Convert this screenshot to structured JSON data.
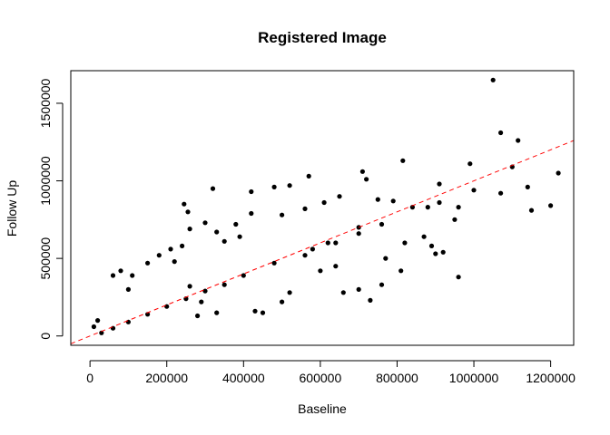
{
  "chart_data": {
    "type": "scatter",
    "title": "Registered Image",
    "xlabel": "Baseline",
    "ylabel": "Follow Up",
    "xlim": [
      -50000,
      1260000
    ],
    "ylim": [
      -60000,
      1710000
    ],
    "x_ticks": [
      0,
      200000,
      400000,
      600000,
      800000,
      1000000,
      1200000
    ],
    "x_tick_labels": [
      "0",
      "200000",
      "400000",
      "600000",
      "800000",
      "1000000",
      "1200000"
    ],
    "y_ticks": [
      0,
      500000,
      1000000,
      1500000
    ],
    "y_tick_labels": [
      "0",
      "500000",
      "1000000",
      "1500000"
    ],
    "grid": false,
    "reference_line": {
      "intercept": 0,
      "slope": 1.0,
      "color": "#ff0000",
      "style": "dashed"
    },
    "point_color": "#000000",
    "points": [
      [
        1050000,
        1650000
      ],
      [
        1070000,
        1310000
      ],
      [
        1115000,
        1260000
      ],
      [
        1100000,
        1090000
      ],
      [
        1220000,
        1050000
      ],
      [
        1070000,
        920000
      ],
      [
        1140000,
        960000
      ],
      [
        1150000,
        810000
      ],
      [
        1200000,
        840000
      ],
      [
        990000,
        1110000
      ],
      [
        1000000,
        940000
      ],
      [
        910000,
        980000
      ],
      [
        960000,
        830000
      ],
      [
        910000,
        860000
      ],
      [
        880000,
        830000
      ],
      [
        950000,
        750000
      ],
      [
        815000,
        1130000
      ],
      [
        710000,
        1060000
      ],
      [
        720000,
        1010000
      ],
      [
        570000,
        1030000
      ],
      [
        480000,
        960000
      ],
      [
        320000,
        950000
      ],
      [
        245000,
        850000
      ],
      [
        255000,
        800000
      ],
      [
        420000,
        930000
      ],
      [
        520000,
        970000
      ],
      [
        960000,
        380000
      ],
      [
        900000,
        530000
      ],
      [
        890000,
        580000
      ],
      [
        920000,
        540000
      ],
      [
        870000,
        640000
      ],
      [
        820000,
        600000
      ],
      [
        810000,
        420000
      ],
      [
        770000,
        500000
      ],
      [
        760000,
        330000
      ],
      [
        730000,
        230000
      ],
      [
        700000,
        300000
      ],
      [
        660000,
        280000
      ],
      [
        640000,
        450000
      ],
      [
        600000,
        420000
      ],
      [
        520000,
        280000
      ],
      [
        500000,
        220000
      ],
      [
        430000,
        160000
      ],
      [
        330000,
        150000
      ],
      [
        290000,
        220000
      ],
      [
        280000,
        130000
      ],
      [
        260000,
        320000
      ],
      [
        220000,
        480000
      ],
      [
        180000,
        520000
      ],
      [
        210000,
        560000
      ],
      [
        150000,
        470000
      ],
      [
        110000,
        390000
      ],
      [
        100000,
        300000
      ],
      [
        60000,
        390000
      ],
      [
        80000,
        420000
      ],
      [
        240000,
        580000
      ],
      [
        350000,
        610000
      ],
      [
        390000,
        640000
      ],
      [
        330000,
        670000
      ],
      [
        260000,
        690000
      ],
      [
        300000,
        730000
      ],
      [
        380000,
        720000
      ],
      [
        420000,
        790000
      ],
      [
        500000,
        780000
      ],
      [
        560000,
        820000
      ],
      [
        610000,
        860000
      ],
      [
        650000,
        900000
      ],
      [
        750000,
        880000
      ],
      [
        790000,
        870000
      ],
      [
        840000,
        830000
      ],
      [
        450000,
        150000
      ],
      [
        580000,
        560000
      ],
      [
        640000,
        600000
      ],
      [
        700000,
        660000
      ],
      [
        760000,
        720000
      ],
      [
        700000,
        700000
      ],
      [
        620000,
        600000
      ],
      [
        560000,
        520000
      ],
      [
        480000,
        470000
      ],
      [
        400000,
        390000
      ],
      [
        350000,
        330000
      ],
      [
        300000,
        290000
      ],
      [
        250000,
        240000
      ],
      [
        200000,
        190000
      ],
      [
        150000,
        140000
      ],
      [
        100000,
        90000
      ],
      [
        60000,
        50000
      ],
      [
        30000,
        20000
      ],
      [
        20000,
        100000
      ],
      [
        10000,
        60000
      ]
    ]
  }
}
